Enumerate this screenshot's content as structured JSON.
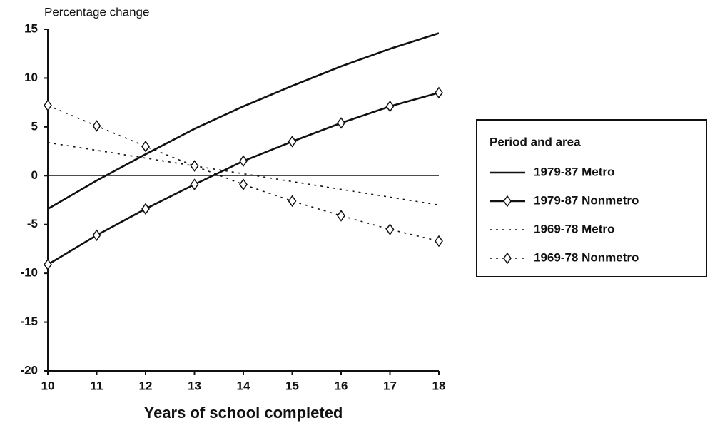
{
  "chart_data": {
    "type": "line",
    "y_label": "Percentage change",
    "x_label": "Years of school completed",
    "legend_title": "Period and area",
    "legend_position": "right",
    "x": [
      10,
      11,
      12,
      13,
      14,
      15,
      16,
      17,
      18
    ],
    "xlim": [
      10,
      18
    ],
    "xticks": [
      10,
      11,
      12,
      13,
      14,
      15,
      16,
      17,
      18
    ],
    "ylim": [
      -20,
      15
    ],
    "yticks": [
      -20,
      -15,
      -10,
      -5,
      0,
      5,
      10,
      15
    ],
    "zero_line": true,
    "series": [
      {
        "name": "1979-87 Metro",
        "color": "#111111",
        "line_style": "solid",
        "marker": "none",
        "values": [
          -3.4,
          -0.5,
          2.2,
          4.8,
          7.1,
          9.2,
          11.2,
          13.0,
          14.6
        ]
      },
      {
        "name": "1979-87 Nonmetro",
        "color": "#111111",
        "line_style": "solid",
        "marker": "diamond",
        "values": [
          -9.1,
          -6.1,
          -3.4,
          -0.9,
          1.5,
          3.5,
          5.4,
          7.1,
          8.5
        ]
      },
      {
        "name": "1969-78 Metro",
        "color": "#111111",
        "line_style": "dotted",
        "marker": "none",
        "values": [
          3.4,
          2.6,
          1.8,
          1.0,
          0.2,
          -0.6,
          -1.4,
          -2.2,
          -3.0
        ]
      },
      {
        "name": "1969-78 Nonmetro",
        "color": "#111111",
        "line_style": "dotted",
        "marker": "diamond",
        "values": [
          7.2,
          5.1,
          3.0,
          1.0,
          -0.9,
          -2.6,
          -4.1,
          -5.5,
          -6.7
        ]
      }
    ]
  }
}
